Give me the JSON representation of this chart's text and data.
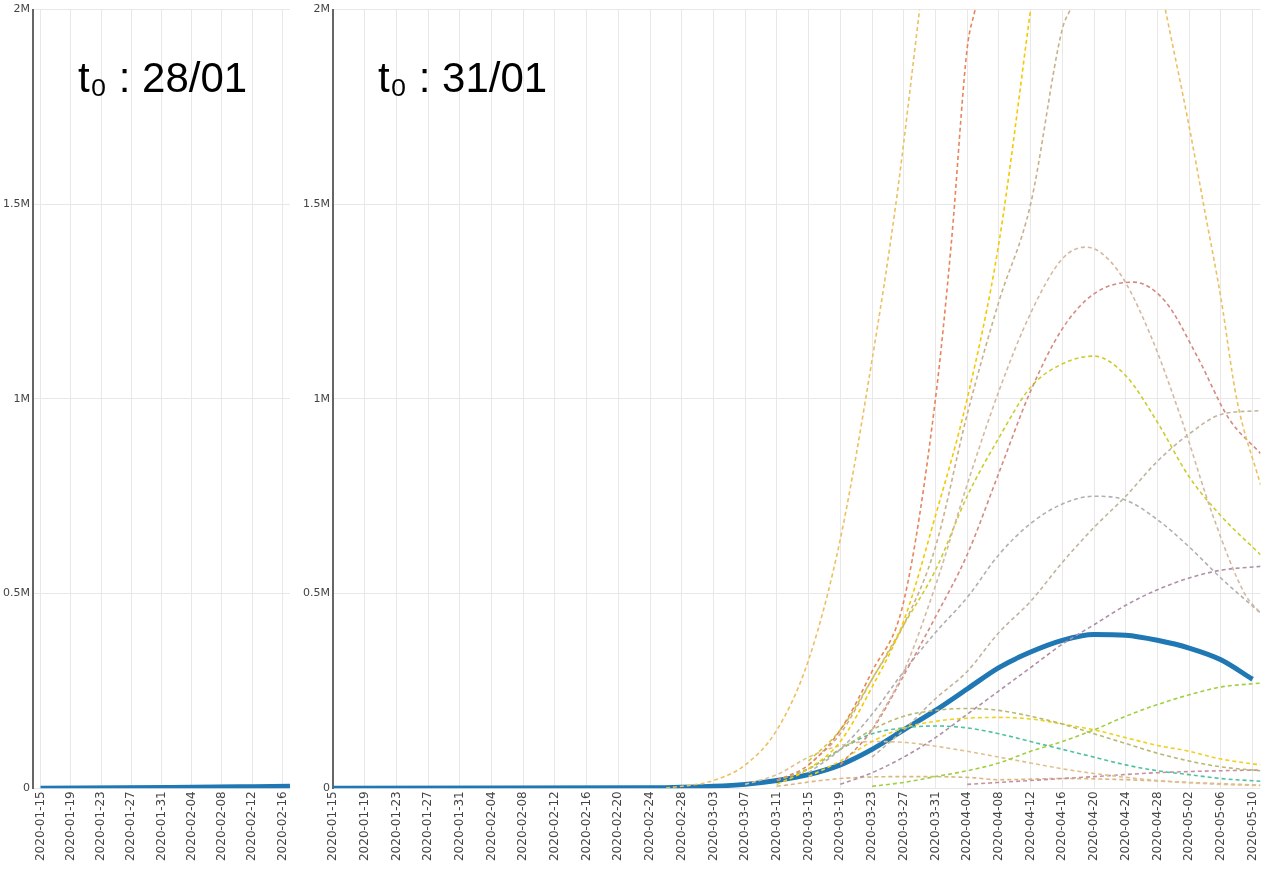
{
  "chart_data": [
    {
      "type": "line",
      "annotations": [
        "t₀ : 28/01"
      ],
      "xlim": [
        "2020-01-14",
        "2020-02-17"
      ],
      "xticks": [
        "2020-01-15",
        "2020-01-19",
        "2020-01-23",
        "2020-01-27",
        "2020-01-31",
        "2020-02-04",
        "2020-02-08",
        "2020-02-12",
        "2020-02-16"
      ],
      "ylim": [
        0,
        2000000
      ],
      "yticks": [
        0,
        {
          "value": 500000,
          "label": "0.5M"
        },
        {
          "value": 1000000,
          "label": "1M"
        },
        {
          "value": 1500000,
          "label": "1.5M"
        },
        {
          "value": 2000000,
          "label": "2M"
        }
      ],
      "grid": true,
      "legend": false,
      "marker": "none",
      "series": [
        {
          "color": "#1f77b4",
          "line_style": "solid",
          "x": [
            "2020-01-15",
            "2020-02-01",
            "2020-02-17"
          ],
          "values": [
            0,
            2000,
            5000
          ]
        }
      ]
    },
    {
      "type": "line",
      "annotations": [
        "t₀ : 31/01"
      ],
      "xlim": [
        "2020-01-15",
        "2020-05-11"
      ],
      "xticks": [
        "2020-01-15",
        "2020-01-19",
        "2020-01-23",
        "2020-01-27",
        "2020-01-31",
        "2020-02-04",
        "2020-02-08",
        "2020-02-12",
        "2020-02-16",
        "2020-02-20",
        "2020-02-24",
        "2020-02-28",
        "2020-03-03",
        "2020-03-07",
        "2020-03-11",
        "2020-03-15",
        "2020-03-19",
        "2020-03-23",
        "2020-03-27",
        "2020-03-31",
        "2020-04-04",
        "2020-04-08",
        "2020-04-12",
        "2020-04-16",
        "2020-04-20",
        "2020-04-24",
        "2020-04-28",
        "2020-05-02",
        "2020-05-06",
        "2020-05-10"
      ],
      "ylim": [
        0,
        2000000
      ],
      "yticks": [
        0,
        {
          "value": 500000,
          "label": "0.5M"
        },
        {
          "value": 1000000,
          "label": "1M"
        },
        {
          "value": 1500000,
          "label": "1.5M"
        },
        {
          "value": 2000000,
          "label": "2M"
        }
      ],
      "grid": true,
      "legend": false,
      "marker": "none",
      "series": [
        {
          "color": "#ecc060",
          "line_style": "dashed",
          "x": [
            "2020-02-26",
            "2020-03-03",
            "2020-03-07",
            "2020-03-11",
            "2020-03-15",
            "2020-03-19",
            "2020-03-23",
            "2020-03-26",
            "2020-03-29"
          ],
          "values": [
            0,
            20000,
            60000,
            150000,
            330000,
            640000,
            1100000,
            1500000,
            2000000
          ]
        },
        {
          "color": "#e8845a",
          "line_style": "dashed",
          "x": [
            "2020-03-11",
            "2020-03-15",
            "2020-03-19",
            "2020-03-23",
            "2020-03-27",
            "2020-03-31",
            "2020-04-02",
            "2020-04-04",
            "2020-04-05"
          ],
          "values": [
            20000,
            60000,
            150000,
            300000,
            480000,
            1000000,
            1400000,
            1900000,
            2000000
          ]
        },
        {
          "color": "#f5c800",
          "line_style": "dashed",
          "x": [
            "2020-03-11",
            "2020-03-15",
            "2020-03-19",
            "2020-03-23",
            "2020-03-27",
            "2020-03-31",
            "2020-04-04",
            "2020-04-08",
            "2020-04-12"
          ],
          "values": [
            10000,
            50000,
            120000,
            260000,
            430000,
            700000,
            1000000,
            1400000,
            2000000
          ]
        },
        {
          "color": "#c8b08c",
          "line_style": "dashed",
          "x": [
            "2020-03-15",
            "2020-03-19",
            "2020-03-23",
            "2020-03-27",
            "2020-03-31",
            "2020-04-04",
            "2020-04-08",
            "2020-04-12",
            "2020-04-16",
            "2020-04-17"
          ],
          "values": [
            60000,
            140000,
            280000,
            420000,
            620000,
            960000,
            1250000,
            1500000,
            1950000,
            2000000
          ]
        },
        {
          "color": "#ecc060",
          "line_style": "dashed",
          "x": [
            "2020-04-29",
            "2020-05-02",
            "2020-05-04",
            "2020-05-06",
            "2020-05-08",
            "2020-05-11"
          ],
          "values": [
            2000000,
            1700000,
            1480000,
            1260000,
            1000000,
            780000
          ]
        },
        {
          "color": "#d4b8a0",
          "line_style": "dashed",
          "x": [
            "2020-03-23",
            "2020-03-27",
            "2020-03-31",
            "2020-04-04",
            "2020-04-08",
            "2020-04-12",
            "2020-04-16",
            "2020-04-19",
            "2020-04-23",
            "2020-04-27",
            "2020-05-01",
            "2020-05-05",
            "2020-05-09",
            "2020-05-11"
          ],
          "values": [
            150000,
            300000,
            520000,
            780000,
            1020000,
            1220000,
            1360000,
            1390000,
            1330000,
            1170000,
            950000,
            700000,
            500000,
            450000
          ]
        },
        {
          "color": "#d48a80",
          "line_style": "dashed",
          "x": [
            "2020-03-19",
            "2020-03-23",
            "2020-03-27",
            "2020-03-31",
            "2020-04-04",
            "2020-04-08",
            "2020-04-12",
            "2020-04-16",
            "2020-04-20",
            "2020-04-25",
            "2020-04-29",
            "2020-05-03",
            "2020-05-07",
            "2020-05-11"
          ],
          "values": [
            60000,
            150000,
            290000,
            440000,
            600000,
            810000,
            1020000,
            1180000,
            1270000,
            1300000,
            1250000,
            1110000,
            950000,
            860000
          ]
        },
        {
          "color": "#cccc30",
          "line_style": "dashed",
          "x": [
            "2020-03-15",
            "2020-03-19",
            "2020-03-23",
            "2020-03-27",
            "2020-03-31",
            "2020-04-04",
            "2020-04-08",
            "2020-04-12",
            "2020-04-16",
            "2020-04-20",
            "2020-04-24",
            "2020-04-28",
            "2020-05-02",
            "2020-05-06",
            "2020-05-11"
          ],
          "values": [
            70000,
            150000,
            280000,
            420000,
            560000,
            750000,
            900000,
            1030000,
            1090000,
            1110000,
            1060000,
            940000,
            800000,
            700000,
            600000
          ]
        },
        {
          "color": "#c0b4a0",
          "line_style": "dashed",
          "x": [
            "2020-03-23",
            "2020-03-27",
            "2020-03-31",
            "2020-04-04",
            "2020-04-08",
            "2020-04-12",
            "2020-04-16",
            "2020-04-20",
            "2020-04-24",
            "2020-04-28",
            "2020-05-02",
            "2020-05-06",
            "2020-05-11"
          ],
          "values": [
            80000,
            150000,
            230000,
            300000,
            400000,
            480000,
            580000,
            670000,
            750000,
            840000,
            910000,
            960000,
            970000
          ]
        },
        {
          "color": "#b0b0b0",
          "line_style": "dashed",
          "x": [
            "2020-03-15",
            "2020-03-19",
            "2020-03-23",
            "2020-03-27",
            "2020-03-31",
            "2020-04-04",
            "2020-04-08",
            "2020-04-12",
            "2020-04-16",
            "2020-04-20",
            "2020-04-24",
            "2020-04-28",
            "2020-05-02",
            "2020-05-06",
            "2020-05-11"
          ],
          "values": [
            40000,
            100000,
            190000,
            300000,
            400000,
            490000,
            600000,
            680000,
            730000,
            750000,
            740000,
            690000,
            620000,
            540000,
            450000
          ]
        },
        {
          "color": "#b090a8",
          "line_style": "dashed",
          "x": [
            "2020-03-19",
            "2020-03-23",
            "2020-03-27",
            "2020-03-31",
            "2020-04-04",
            "2020-04-08",
            "2020-04-12",
            "2020-04-16",
            "2020-04-20",
            "2020-04-24",
            "2020-04-28",
            "2020-05-02",
            "2020-05-06",
            "2020-05-11"
          ],
          "values": [
            10000,
            40000,
            80000,
            130000,
            190000,
            250000,
            310000,
            370000,
            420000,
            470000,
            510000,
            540000,
            560000,
            570000
          ]
        },
        {
          "color": "#a0d040",
          "line_style": "dashed",
          "x": [
            "2020-03-23",
            "2020-03-27",
            "2020-03-31",
            "2020-04-04",
            "2020-04-08",
            "2020-04-12",
            "2020-04-16",
            "2020-04-20",
            "2020-04-24",
            "2020-04-28",
            "2020-05-02",
            "2020-05-06",
            "2020-05-11"
          ],
          "values": [
            5000,
            15000,
            30000,
            45000,
            65000,
            95000,
            120000,
            150000,
            185000,
            215000,
            240000,
            260000,
            270000
          ]
        },
        {
          "color": "#b8b870",
          "line_style": "dashed",
          "x": [
            "2020-03-11",
            "2020-03-15",
            "2020-03-19",
            "2020-03-23",
            "2020-03-27",
            "2020-03-31",
            "2020-04-04",
            "2020-04-08",
            "2020-04-12",
            "2020-04-16",
            "2020-04-20",
            "2020-04-24",
            "2020-04-28",
            "2020-05-02",
            "2020-05-06",
            "2020-05-11"
          ],
          "values": [
            20000,
            50000,
            100000,
            150000,
            185000,
            200000,
            205000,
            200000,
            185000,
            165000,
            140000,
            115000,
            90000,
            70000,
            55000,
            45000
          ]
        },
        {
          "color": "#f0d020",
          "line_style": "dashed",
          "x": [
            "2020-03-15",
            "2020-03-19",
            "2020-03-23",
            "2020-03-27",
            "2020-03-31",
            "2020-04-04",
            "2020-04-08",
            "2020-04-12",
            "2020-04-16",
            "2020-04-20",
            "2020-04-24",
            "2020-04-28",
            "2020-05-02",
            "2020-05-06",
            "2020-05-11"
          ],
          "values": [
            30000,
            70000,
            120000,
            155000,
            172000,
            180000,
            182000,
            178000,
            165000,
            150000,
            130000,
            110000,
            95000,
            75000,
            60000
          ]
        },
        {
          "color": "#50c0a0",
          "line_style": "dashed",
          "x": [
            "2020-03-11",
            "2020-03-15",
            "2020-03-19",
            "2020-03-23",
            "2020-03-27",
            "2020-03-31",
            "2020-04-04",
            "2020-04-08",
            "2020-04-12",
            "2020-04-16",
            "2020-04-20",
            "2020-04-24",
            "2020-04-28",
            "2020-05-02",
            "2020-05-06",
            "2020-05-11"
          ],
          "values": [
            20000,
            50000,
            100000,
            140000,
            155000,
            160000,
            155000,
            140000,
            120000,
            100000,
            80000,
            60000,
            45000,
            35000,
            25000,
            18000
          ]
        },
        {
          "color": "#e0c090",
          "line_style": "dashed",
          "x": [
            "2020-03-07",
            "2020-03-11",
            "2020-03-15",
            "2020-03-19",
            "2020-03-23",
            "2020-03-27",
            "2020-03-31",
            "2020-04-04",
            "2020-04-08",
            "2020-04-12",
            "2020-04-16",
            "2020-04-20",
            "2020-04-24",
            "2020-04-28",
            "2020-05-02",
            "2020-05-06",
            "2020-05-11"
          ],
          "values": [
            10000,
            35000,
            80000,
            110000,
            120000,
            118000,
            108000,
            95000,
            80000,
            65000,
            50000,
            38000,
            28000,
            20000,
            14000,
            10000,
            7000
          ]
        },
        {
          "color": "#c890a0",
          "line_style": "dashed",
          "x": [
            "2020-04-04",
            "2020-04-12",
            "2020-04-20",
            "2020-04-28",
            "2020-05-06",
            "2020-05-11"
          ],
          "values": [
            10000,
            20000,
            30000,
            40000,
            45000,
            47000
          ]
        },
        {
          "color": "#d8b880",
          "line_style": "dashed",
          "x": [
            "2020-03-11",
            "2020-03-19",
            "2020-03-27",
            "2020-04-04",
            "2020-04-08",
            "2020-04-16",
            "2020-04-24",
            "2020-05-02",
            "2020-05-11"
          ],
          "values": [
            5000,
            25000,
            30000,
            28000,
            22000,
            25000,
            22000,
            15000,
            8000
          ]
        },
        {
          "color": "#1f77b4",
          "line_style": "solid",
          "x": [
            "2020-01-15",
            "2020-02-24",
            "2020-03-03",
            "2020-03-07",
            "2020-03-11",
            "2020-03-15",
            "2020-03-19",
            "2020-03-23",
            "2020-03-27",
            "2020-03-31",
            "2020-04-04",
            "2020-04-08",
            "2020-04-12",
            "2020-04-16",
            "2020-04-20",
            "2020-04-24",
            "2020-04-28",
            "2020-05-02",
            "2020-05-06",
            "2020-05-10"
          ],
          "values": [
            0,
            1000,
            5000,
            10000,
            20000,
            35000,
            60000,
            100000,
            150000,
            200000,
            255000,
            310000,
            350000,
            380000,
            395000,
            393000,
            380000,
            360000,
            330000,
            280000
          ]
        }
      ]
    }
  ]
}
